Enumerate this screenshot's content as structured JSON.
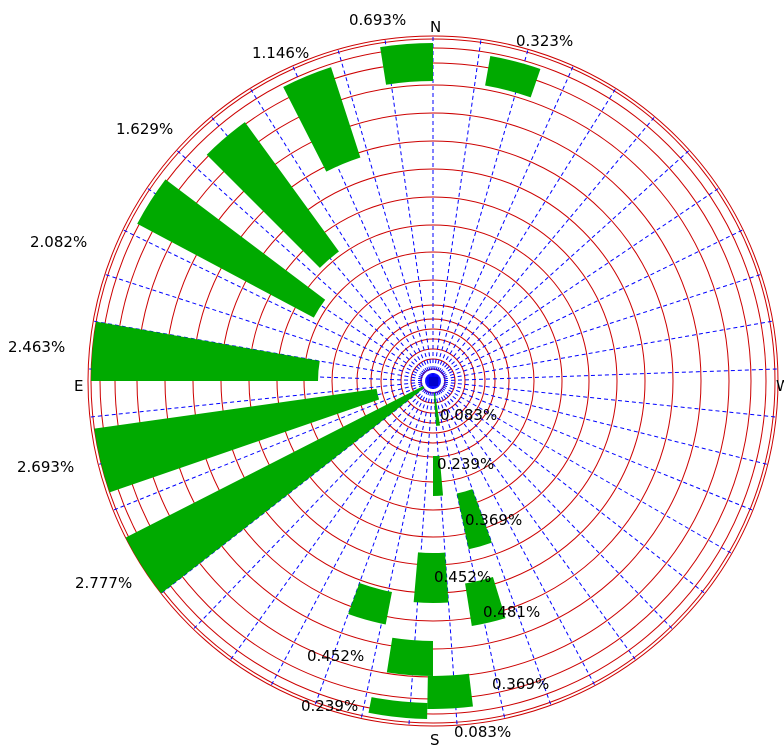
{
  "chart_data": {
    "type": "polar-bar",
    "title": "",
    "directions": {
      "north": "N",
      "east": "E",
      "south": "S",
      "west": "W"
    },
    "sectors": [
      {
        "label": "0.693%",
        "value": 0.693
      },
      {
        "label": "0.323%",
        "value": 0.323
      },
      {
        "label": "1.146%",
        "value": 1.146
      },
      {
        "label": "1.629%",
        "value": 1.629
      },
      {
        "label": "2.082%",
        "value": 2.082
      },
      {
        "label": "2.463%",
        "value": 2.463
      },
      {
        "label": "2.693%",
        "value": 2.693
      },
      {
        "label": "2.777%",
        "value": 2.777
      },
      {
        "label": "0.083%",
        "value": 0.083
      },
      {
        "label": "0.239%",
        "value": 0.239
      },
      {
        "label": "0.369%",
        "value": 0.369
      },
      {
        "label": "0.452%",
        "value": 0.452
      },
      {
        "label": "0.481%",
        "value": 0.481
      },
      {
        "label": "0.452%",
        "value": 0.452
      },
      {
        "label": "0.369%",
        "value": 0.369
      },
      {
        "label": "0.239%",
        "value": 0.239
      },
      {
        "label": "0.083%",
        "value": 0.083
      }
    ],
    "grid": true,
    "colors": {
      "bar": "#00aa00",
      "ring": "#cc0000",
      "spoke": "#0000ff",
      "center": "#0000cc"
    }
  }
}
